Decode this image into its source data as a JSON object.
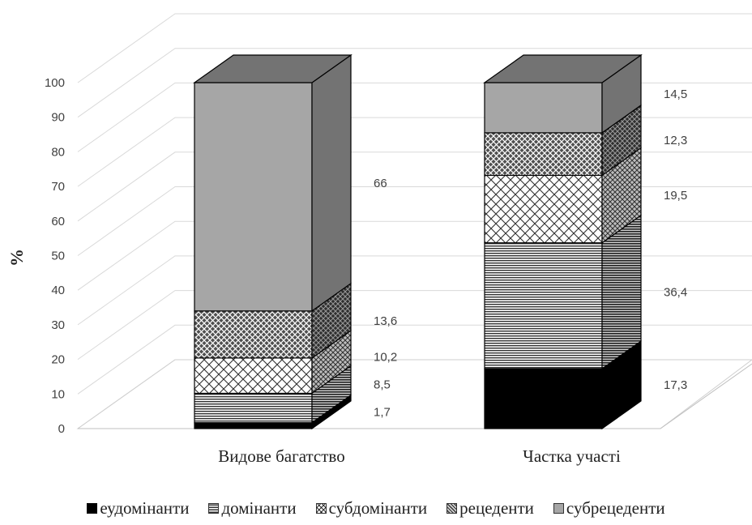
{
  "chart_data": {
    "type": "bar",
    "stacked": true,
    "three_d": true,
    "title": "",
    "xlabel": "",
    "ylabel": "%",
    "ylim": [
      0,
      100
    ],
    "yticks": [
      0,
      10,
      20,
      30,
      40,
      50,
      60,
      70,
      80,
      90,
      100
    ],
    "categories": [
      "Видове багатство",
      "Частка участі"
    ],
    "series": [
      {
        "name": "еудомінанти",
        "values": [
          1.7,
          17.3
        ],
        "color": "#000000",
        "pattern": "solid"
      },
      {
        "name": "домінанти",
        "values": [
          8.5,
          36.4
        ],
        "color": "#7f7f7f",
        "pattern": "horizontal-lines"
      },
      {
        "name": "субдомінанти",
        "values": [
          10.2,
          19.5
        ],
        "color": "#ffffff",
        "pattern": "diamond-lattice"
      },
      {
        "name": "рецеденти",
        "values": [
          13.6,
          12.3
        ],
        "color": "#7f7f7f",
        "pattern": "cross-hatch"
      },
      {
        "name": "субрецеденти",
        "values": [
          66,
          14.5
        ],
        "color": "#a6a6a6",
        "pattern": "solid"
      }
    ],
    "data_labels": [
      [
        "1,7",
        "8,5",
        "10,2",
        "13,6",
        "66"
      ],
      [
        "17,3",
        "36,4",
        "19,5",
        "12,3",
        "14,5"
      ]
    ],
    "legend_position": "bottom",
    "grid": true
  }
}
